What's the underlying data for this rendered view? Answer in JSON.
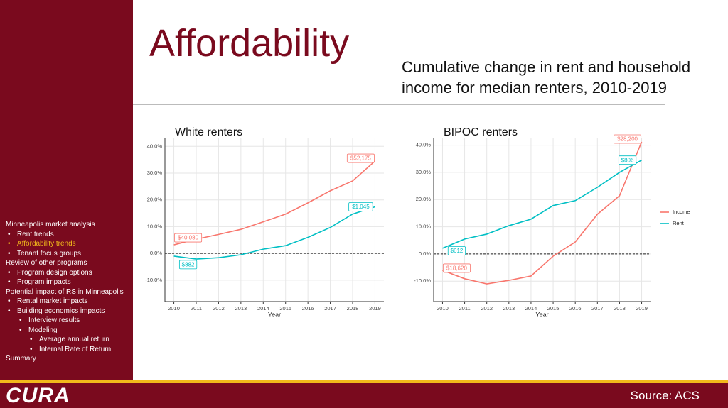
{
  "slide": {
    "title": "Affordability",
    "subtitle": "Cumulative change in rent and household income for median renters, 2010-2019",
    "logo": "CURA",
    "source": "Source: ACS",
    "outline": [
      {
        "text": "Minneapolis market analysis",
        "level": 0
      },
      {
        "text": "Rent trends",
        "level": 1
      },
      {
        "text": "Affordability trends",
        "level": 1,
        "highlight": true
      },
      {
        "text": "Tenant focus groups",
        "level": 1
      },
      {
        "text": "Review of other programs",
        "level": 0
      },
      {
        "text": "Program design options",
        "level": 1
      },
      {
        "text": "Program impacts",
        "level": 1
      },
      {
        "text": "Potential impact of RS in Minneapolis",
        "level": 0
      },
      {
        "text": "Rental market impacts",
        "level": 1
      },
      {
        "text": "Building economics impacts",
        "level": 1
      },
      {
        "text": "Interview results",
        "level": 2
      },
      {
        "text": "Modeling",
        "level": 2
      },
      {
        "text": "Average annual return",
        "level": 3
      },
      {
        "text": "Internal Rate of Return",
        "level": 3
      },
      {
        "text": "Summary",
        "level": 0
      }
    ]
  },
  "chart_data": [
    {
      "type": "line",
      "title": "White renters",
      "x_label": "Year",
      "x": [
        2010,
        2011,
        2012,
        2013,
        2014,
        2015,
        2016,
        2017,
        2018,
        2019
      ],
      "xlim": [
        2009.6,
        2019.4
      ],
      "xticks": [
        2010,
        2011,
        2012,
        2013,
        2014,
        2015,
        2016,
        2017,
        2018,
        2019
      ],
      "ylim": [
        -18,
        43
      ],
      "yticks": [
        {
          "value": -10,
          "label": "-10.0%"
        },
        {
          "value": 0,
          "label": "0.0%"
        },
        {
          "value": 10,
          "label": "10.0%"
        },
        {
          "value": 20,
          "label": "20.0%"
        },
        {
          "value": 30,
          "label": "30.0%"
        },
        {
          "value": 40,
          "label": "40.0%"
        }
      ],
      "grid": true,
      "reference_line": 0,
      "legend": false,
      "series": [
        {
          "name": "Income",
          "color": "#f8766d",
          "values": [
            3.2,
            5.3,
            7.1,
            9.0,
            11.8,
            14.7,
            18.9,
            23.4,
            27.1,
            34.5
          ],
          "point_labels": [
            "$40,080",
            null,
            null,
            null,
            null,
            null,
            null,
            null,
            null,
            "$52,175"
          ]
        },
        {
          "name": "Rent",
          "color": "#00bfc4",
          "values": [
            -1.0,
            -2.1,
            -1.6,
            -0.5,
            1.6,
            2.9,
            6.0,
            9.7,
            14.7,
            17.4
          ],
          "point_labels": [
            "$882",
            null,
            null,
            null,
            null,
            null,
            null,
            null,
            null,
            "$1,045"
          ]
        }
      ]
    },
    {
      "type": "line",
      "title": "BIPOC renters",
      "x_label": "Year",
      "x": [
        2010,
        2011,
        2012,
        2013,
        2014,
        2015,
        2016,
        2017,
        2018,
        2019
      ],
      "xlim": [
        2009.6,
        2019.4
      ],
      "xticks": [
        2010,
        2011,
        2012,
        2013,
        2014,
        2015,
        2016,
        2017,
        2018,
        2019
      ],
      "ylim": [
        -17.5,
        42.5
      ],
      "yticks": [
        {
          "value": -10,
          "label": "-10.0%"
        },
        {
          "value": 0,
          "label": "0.0%"
        },
        {
          "value": 10,
          "label": "10.0%"
        },
        {
          "value": 20,
          "label": "20.0%"
        },
        {
          "value": 30,
          "label": "30.0%"
        },
        {
          "value": 40,
          "label": "40.0%"
        }
      ],
      "grid": true,
      "reference_line": 0,
      "legend": "right",
      "series": [
        {
          "name": "Income",
          "color": "#f8766d",
          "values": [
            -6.0,
            -9.1,
            -11.0,
            -9.7,
            -8.1,
            -0.8,
            4.4,
            14.6,
            21.4,
            41.2
          ],
          "point_labels": [
            "$18,620",
            null,
            null,
            null,
            null,
            null,
            null,
            null,
            null,
            "$28,200"
          ]
        },
        {
          "name": "Rent",
          "color": "#00bfc4",
          "values": [
            2.1,
            5.5,
            7.3,
            10.4,
            12.8,
            17.8,
            19.6,
            24.5,
            30.0,
            34.5
          ],
          "point_labels": [
            "$612",
            null,
            null,
            null,
            null,
            null,
            null,
            null,
            null,
            "$806"
          ]
        }
      ]
    }
  ]
}
